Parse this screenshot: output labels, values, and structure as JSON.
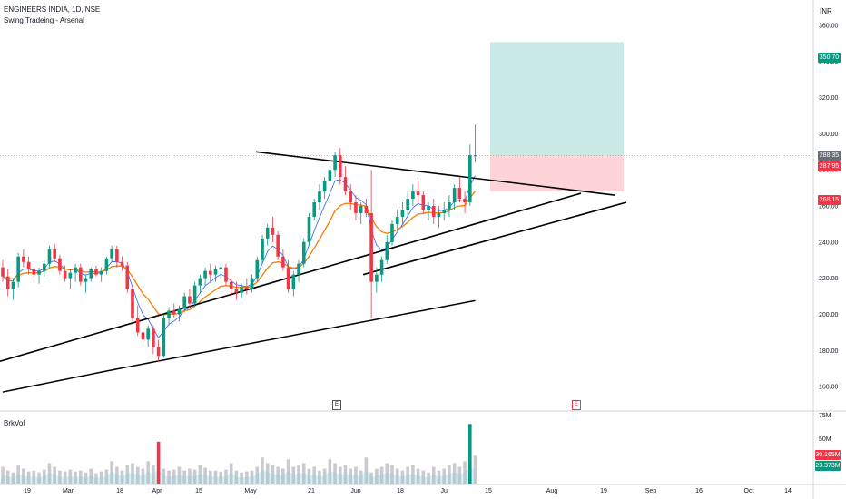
{
  "header": {
    "symbol_line": "ENGINEERS INDIA, 1D, NSE",
    "indicator_line": "Swing Tradeing - Arsenal",
    "currency": "INR",
    "volume_label": "BrkVol"
  },
  "price_tags": {
    "target": "350.70",
    "current_1": "288.35",
    "current_2": "287.95",
    "stop": "268.15",
    "vol_1": "30.165M",
    "vol_2": "23.373M"
  },
  "markers": {
    "e1": "E",
    "e2": "E"
  },
  "colors": {
    "up": "#089981",
    "down": "#f23645",
    "ema_fast": "#2962ff",
    "ema_mid": "#f57c00",
    "ema_slow": "#000000",
    "target_zone": "#b2dfdb",
    "stop_zone": "#ffcdd2"
  },
  "chart_data": {
    "type": "candlestick",
    "y_ticks": [
      160,
      180,
      200,
      220,
      240,
      260,
      280,
      300,
      320,
      340,
      360
    ],
    "y_tick_labels": [
      "160.00",
      "180.00",
      "200.00",
      "220.00",
      "240.00",
      "260.00",
      "280.00",
      "300.00",
      "320.00",
      "340.00",
      "360.00"
    ],
    "x_tick_labels": [
      "19",
      "Mar",
      "18",
      "Apr",
      "15",
      "May",
      "21",
      "Jun",
      "18",
      "Jul",
      "15",
      "Aug",
      "19",
      "Sep",
      "16",
      "Oct",
      "14"
    ],
    "volume_ticks": [
      "75M",
      "50M"
    ],
    "ylim": [
      148,
      370
    ],
    "candles": [
      [
        226,
        230,
        218,
        221
      ],
      [
        221,
        225,
        210,
        214
      ],
      [
        214,
        220,
        208,
        218
      ],
      [
        218,
        234,
        215,
        232
      ],
      [
        232,
        236,
        226,
        229
      ],
      [
        229,
        232,
        222,
        225
      ],
      [
        225,
        228,
        218,
        222
      ],
      [
        222,
        226,
        217,
        224
      ],
      [
        224,
        230,
        221,
        228
      ],
      [
        228,
        238,
        226,
        236
      ],
      [
        236,
        239,
        229,
        231
      ],
      [
        231,
        233,
        222,
        224
      ],
      [
        224,
        227,
        218,
        220
      ],
      [
        220,
        225,
        214,
        223
      ],
      [
        223,
        228,
        218,
        226
      ],
      [
        226,
        228,
        216,
        218
      ],
      [
        218,
        222,
        212,
        220
      ],
      [
        220,
        226,
        218,
        225
      ],
      [
        225,
        227,
        221,
        222
      ],
      [
        222,
        226,
        218,
        224
      ],
      [
        224,
        232,
        222,
        231
      ],
      [
        231,
        238,
        229,
        236
      ],
      [
        236,
        238,
        226,
        229
      ],
      [
        229,
        232,
        224,
        227
      ],
      [
        227,
        229,
        212,
        214
      ],
      [
        214,
        216,
        196,
        198
      ],
      [
        198,
        205,
        188,
        190
      ],
      [
        190,
        196,
        184,
        186
      ],
      [
        186,
        194,
        182,
        192
      ],
      [
        192,
        194,
        178,
        182
      ],
      [
        182,
        186,
        174,
        177
      ],
      [
        177,
        200,
        176,
        198
      ],
      [
        198,
        204,
        194,
        202
      ],
      [
        202,
        206,
        198,
        200
      ],
      [
        200,
        205,
        196,
        203
      ],
      [
        203,
        212,
        201,
        210
      ],
      [
        210,
        214,
        204,
        206
      ],
      [
        206,
        218,
        204,
        216
      ],
      [
        216,
        222,
        212,
        220
      ],
      [
        220,
        226,
        216,
        224
      ],
      [
        224,
        228,
        218,
        222
      ],
      [
        222,
        227,
        218,
        225
      ],
      [
        225,
        228,
        220,
        226
      ],
      [
        226,
        228,
        216,
        218
      ],
      [
        218,
        220,
        210,
        214
      ],
      [
        214,
        218,
        208,
        212
      ],
      [
        212,
        217,
        209,
        215
      ],
      [
        215,
        220,
        211,
        214
      ],
      [
        214,
        222,
        212,
        220
      ],
      [
        220,
        232,
        218,
        230
      ],
      [
        230,
        244,
        228,
        242
      ],
      [
        242,
        250,
        238,
        248
      ],
      [
        248,
        254,
        240,
        244
      ],
      [
        244,
        246,
        230,
        232
      ],
      [
        232,
        236,
        224,
        226
      ],
      [
        226,
        230,
        212,
        214
      ],
      [
        214,
        224,
        210,
        222
      ],
      [
        222,
        230,
        218,
        228
      ],
      [
        228,
        242,
        226,
        240
      ],
      [
        240,
        256,
        238,
        254
      ],
      [
        254,
        264,
        252,
        262
      ],
      [
        262,
        272,
        258,
        268
      ],
      [
        268,
        276,
        264,
        274
      ],
      [
        274,
        282,
        270,
        280
      ],
      [
        280,
        290,
        276,
        288
      ],
      [
        288,
        292,
        272,
        276
      ],
      [
        276,
        282,
        266,
        268
      ],
      [
        268,
        272,
        258,
        262
      ],
      [
        262,
        266,
        252,
        256
      ],
      [
        256,
        262,
        250,
        260
      ],
      [
        260,
        264,
        254,
        256
      ],
      [
        256,
        280,
        198,
        218
      ],
      [
        218,
        226,
        212,
        222
      ],
      [
        222,
        232,
        218,
        230
      ],
      [
        230,
        244,
        228,
        240
      ],
      [
        240,
        252,
        238,
        250
      ],
      [
        250,
        258,
        246,
        254
      ],
      [
        254,
        262,
        250,
        258
      ],
      [
        258,
        268,
        254,
        264
      ],
      [
        264,
        272,
        260,
        268
      ],
      [
        268,
        274,
        262,
        266
      ],
      [
        266,
        268,
        256,
        258
      ],
      [
        258,
        262,
        252,
        260
      ],
      [
        260,
        264,
        250,
        254
      ],
      [
        254,
        260,
        248,
        256
      ],
      [
        256,
        262,
        252,
        258
      ],
      [
        258,
        266,
        254,
        262
      ],
      [
        262,
        272,
        258,
        270
      ],
      [
        270,
        276,
        262,
        264
      ],
      [
        264,
        268,
        256,
        262
      ],
      [
        262,
        294,
        260,
        288
      ],
      [
        288,
        305,
        284,
        288
      ]
    ],
    "volumes": [
      18,
      14,
      12,
      20,
      16,
      13,
      14,
      12,
      15,
      22,
      18,
      14,
      13,
      15,
      13,
      14,
      12,
      16,
      11,
      13,
      15,
      24,
      18,
      14,
      20,
      22,
      18,
      16,
      24,
      20,
      45,
      16,
      14,
      15,
      18,
      14,
      16,
      15,
      20,
      17,
      14,
      14,
      13,
      15,
      22,
      14,
      12,
      13,
      14,
      18,
      28,
      22,
      20,
      18,
      16,
      26,
      18,
      20,
      22,
      16,
      18,
      14,
      16,
      26,
      22,
      18,
      20,
      16,
      18,
      14,
      28,
      12,
      16,
      18,
      22,
      20,
      16,
      14,
      18,
      20,
      16,
      14,
      12,
      18,
      14,
      16,
      20,
      22,
      18,
      24,
      64,
      30
    ]
  }
}
